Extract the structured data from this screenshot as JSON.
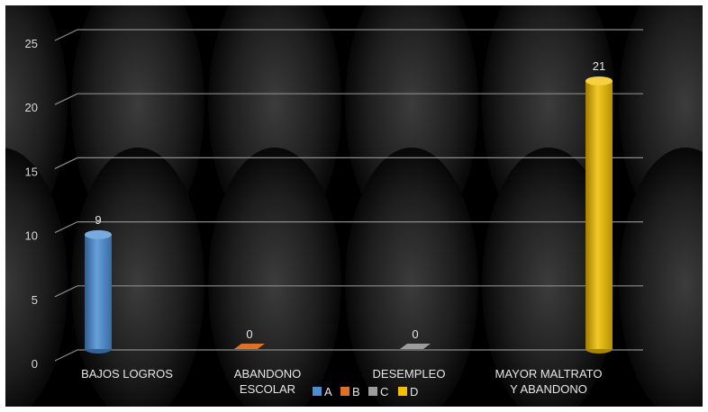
{
  "chart_data": {
    "type": "bar",
    "categories": [
      "BAJOS LOGROS",
      "ABANDONO ESCOLAR",
      "DESEMPLEO",
      "MAYOR MALTRATO Y ABANDONO"
    ],
    "category_lines": [
      [
        "BAJOS LOGROS"
      ],
      [
        "ABANDONO",
        "ESCOLAR"
      ],
      [
        "DESEMPLEO"
      ],
      [
        "MAYOR MALTRATO",
        "Y ABANDONO"
      ]
    ],
    "values": [
      9,
      0,
      0,
      21
    ],
    "bar_colors": [
      "#4a8fd6",
      "#e07024",
      "#9c9c9c",
      "#f2c000"
    ],
    "legend": [
      {
        "label": "A",
        "color": "#4a8fd6"
      },
      {
        "label": "B",
        "color": "#e07024"
      },
      {
        "label": "C",
        "color": "#9c9c9c"
      },
      {
        "label": "D",
        "color": "#f2c000"
      }
    ],
    "yticks": [
      0,
      5,
      10,
      15,
      20,
      25
    ],
    "ylim": [
      0,
      25
    ],
    "grid": true,
    "legend_position": "bottom",
    "data_labels": true,
    "background_color": "#000000"
  }
}
